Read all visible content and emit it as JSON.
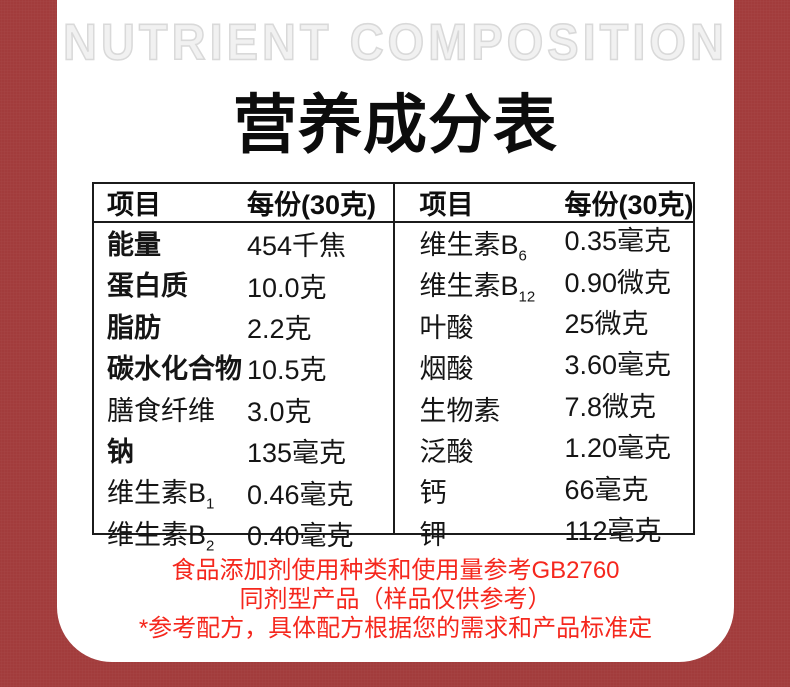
{
  "header": {
    "heading_en": "NUTRIENT COMPOSITION",
    "title": "营养成分表"
  },
  "table_left": {
    "headers": [
      "项目",
      "每份(30克)"
    ],
    "rows": [
      {
        "label": "能量",
        "sub": "",
        "value": "454千焦"
      },
      {
        "label": "蛋白质",
        "sub": "",
        "value": "10.0克"
      },
      {
        "label": "脂肪",
        "sub": "",
        "value": "2.2克"
      },
      {
        "label": "碳水化合物",
        "sub": "",
        "value": "10.5克"
      },
      {
        "label": "膳食纤维",
        "sub": "",
        "value": "3.0克"
      },
      {
        "label": "钠",
        "sub": "",
        "value": "135毫克"
      },
      {
        "label": "维生素B",
        "sub": "1",
        "value": "0.46毫克"
      },
      {
        "label": "维生素B",
        "sub": "2",
        "value": "0.40毫克"
      }
    ]
  },
  "table_right": {
    "headers": [
      "项目",
      "每份(30克)"
    ],
    "rows": [
      {
        "label": "维生素B",
        "sub": "6",
        "value": "0.35毫克"
      },
      {
        "label": "维生素B",
        "sub": "12",
        "value": "0.90微克"
      },
      {
        "label": "叶酸",
        "sub": "",
        "value": "25微克"
      },
      {
        "label": "烟酸",
        "sub": "",
        "value": "3.60毫克"
      },
      {
        "label": "生物素",
        "sub": "",
        "value": "7.8微克"
      },
      {
        "label": "泛酸",
        "sub": "",
        "value": "1.20毫克"
      },
      {
        "label": "钙",
        "sub": "",
        "value": "66毫克"
      },
      {
        "label": "钾",
        "sub": "",
        "value": "112毫克"
      }
    ]
  },
  "footer": {
    "lines": [
      "食品添加剂使用种类和使用量参考GB2760",
      "同剂型产品（样品仅供参考）",
      "*参考配方，具体配方根据您的需求和产品标准定"
    ]
  },
  "colors": {
    "background_maroon": "#a23c3c",
    "footer_red": "#f5271d",
    "table_border": "#1b1b1b",
    "outline_heading_gray": "#d9d9d9"
  }
}
